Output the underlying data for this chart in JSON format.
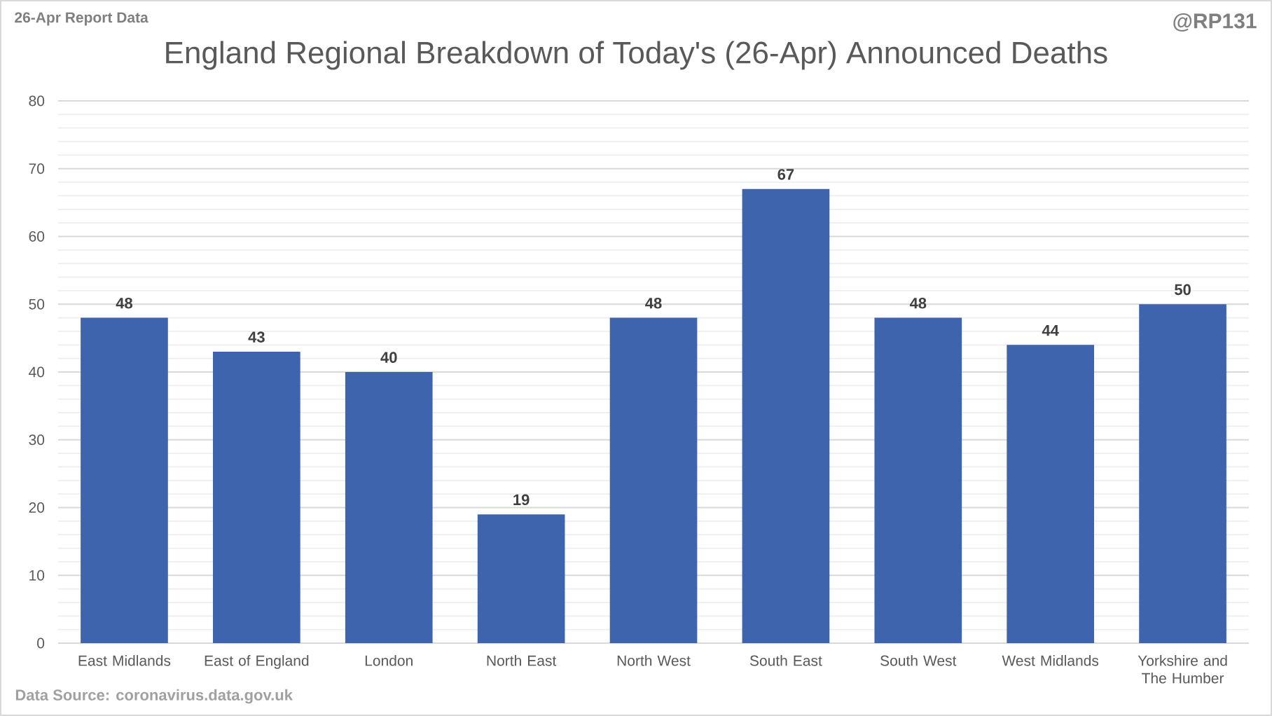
{
  "chart_data": {
    "type": "bar",
    "title": "England Regional Breakdown of Today's (26-Apr) Announced Deaths",
    "categories": [
      "East Midlands",
      "East of England",
      "London",
      "North East",
      "North West",
      "South East",
      "South West",
      "West Midlands",
      "Yorkshire and The Humber"
    ],
    "values": [
      48,
      43,
      40,
      19,
      48,
      67,
      48,
      44,
      50
    ],
    "color": "#3e64ad",
    "ylim": [
      0,
      80
    ],
    "yticks": [
      0,
      10,
      20,
      30,
      40,
      50,
      60,
      70,
      80
    ],
    "grid": "y",
    "data_labels": true,
    "annotations": [
      "26-Apr Report Data",
      "@RP131",
      "Data Source: coronavirus.data.gov.uk"
    ]
  }
}
